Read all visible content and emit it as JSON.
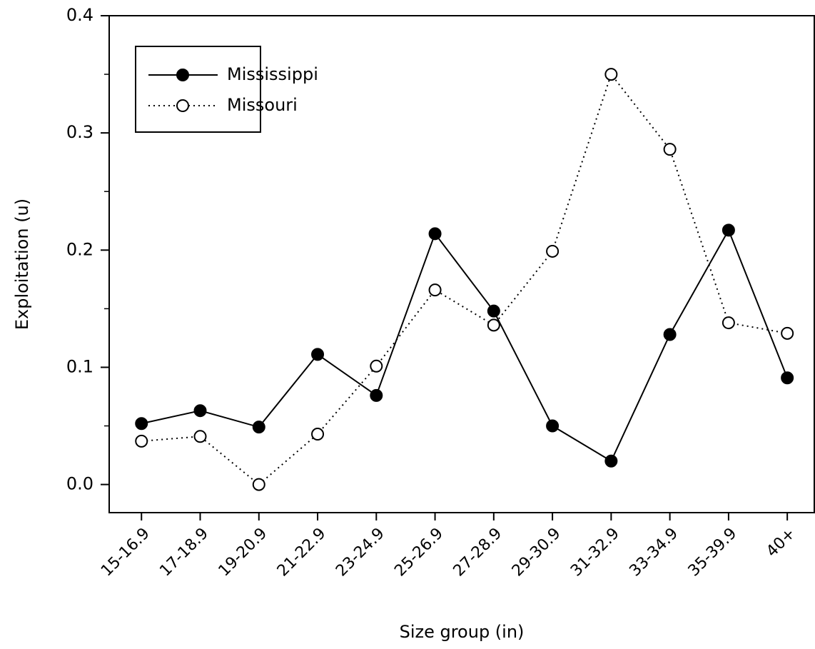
{
  "chart_data": {
    "type": "line",
    "x_label": "Size group (in)",
    "y_label": "Exploitation (u)",
    "categories": [
      "15-16.9",
      "17-18.9",
      "19-20.9",
      "21-22.9",
      "23-24.9",
      "25-26.9",
      "27-28.9",
      "29-30.9",
      "31-32.9",
      "33-34.9",
      "35-39.9",
      "40+"
    ],
    "series": [
      {
        "name": "Mississippi",
        "color": "#000000",
        "marker_fill": "#000000",
        "dash": "solid",
        "values": [
          0.052,
          0.063,
          0.049,
          0.111,
          0.076,
          0.214,
          0.148,
          0.05,
          0.02,
          0.128,
          0.217,
          0.091
        ]
      },
      {
        "name": "Missouri",
        "color": "#000000",
        "marker_fill": "#ffffff",
        "dash": "dotted",
        "values": [
          0.037,
          0.041,
          0.0,
          0.043,
          0.101,
          0.166,
          0.136,
          0.199,
          0.35,
          0.286,
          0.138,
          0.129
        ]
      }
    ],
    "ylim": [
      -0.024,
      0.4
    ],
    "yticks": [
      {
        "value": 0,
        "label": "0.0"
      },
      0.1,
      0.2,
      0.3,
      0.4
    ],
    "yminorticks": [
      0.05,
      0.15,
      0.25,
      0.35
    ],
    "legend": "upper left",
    "grid": false
  }
}
